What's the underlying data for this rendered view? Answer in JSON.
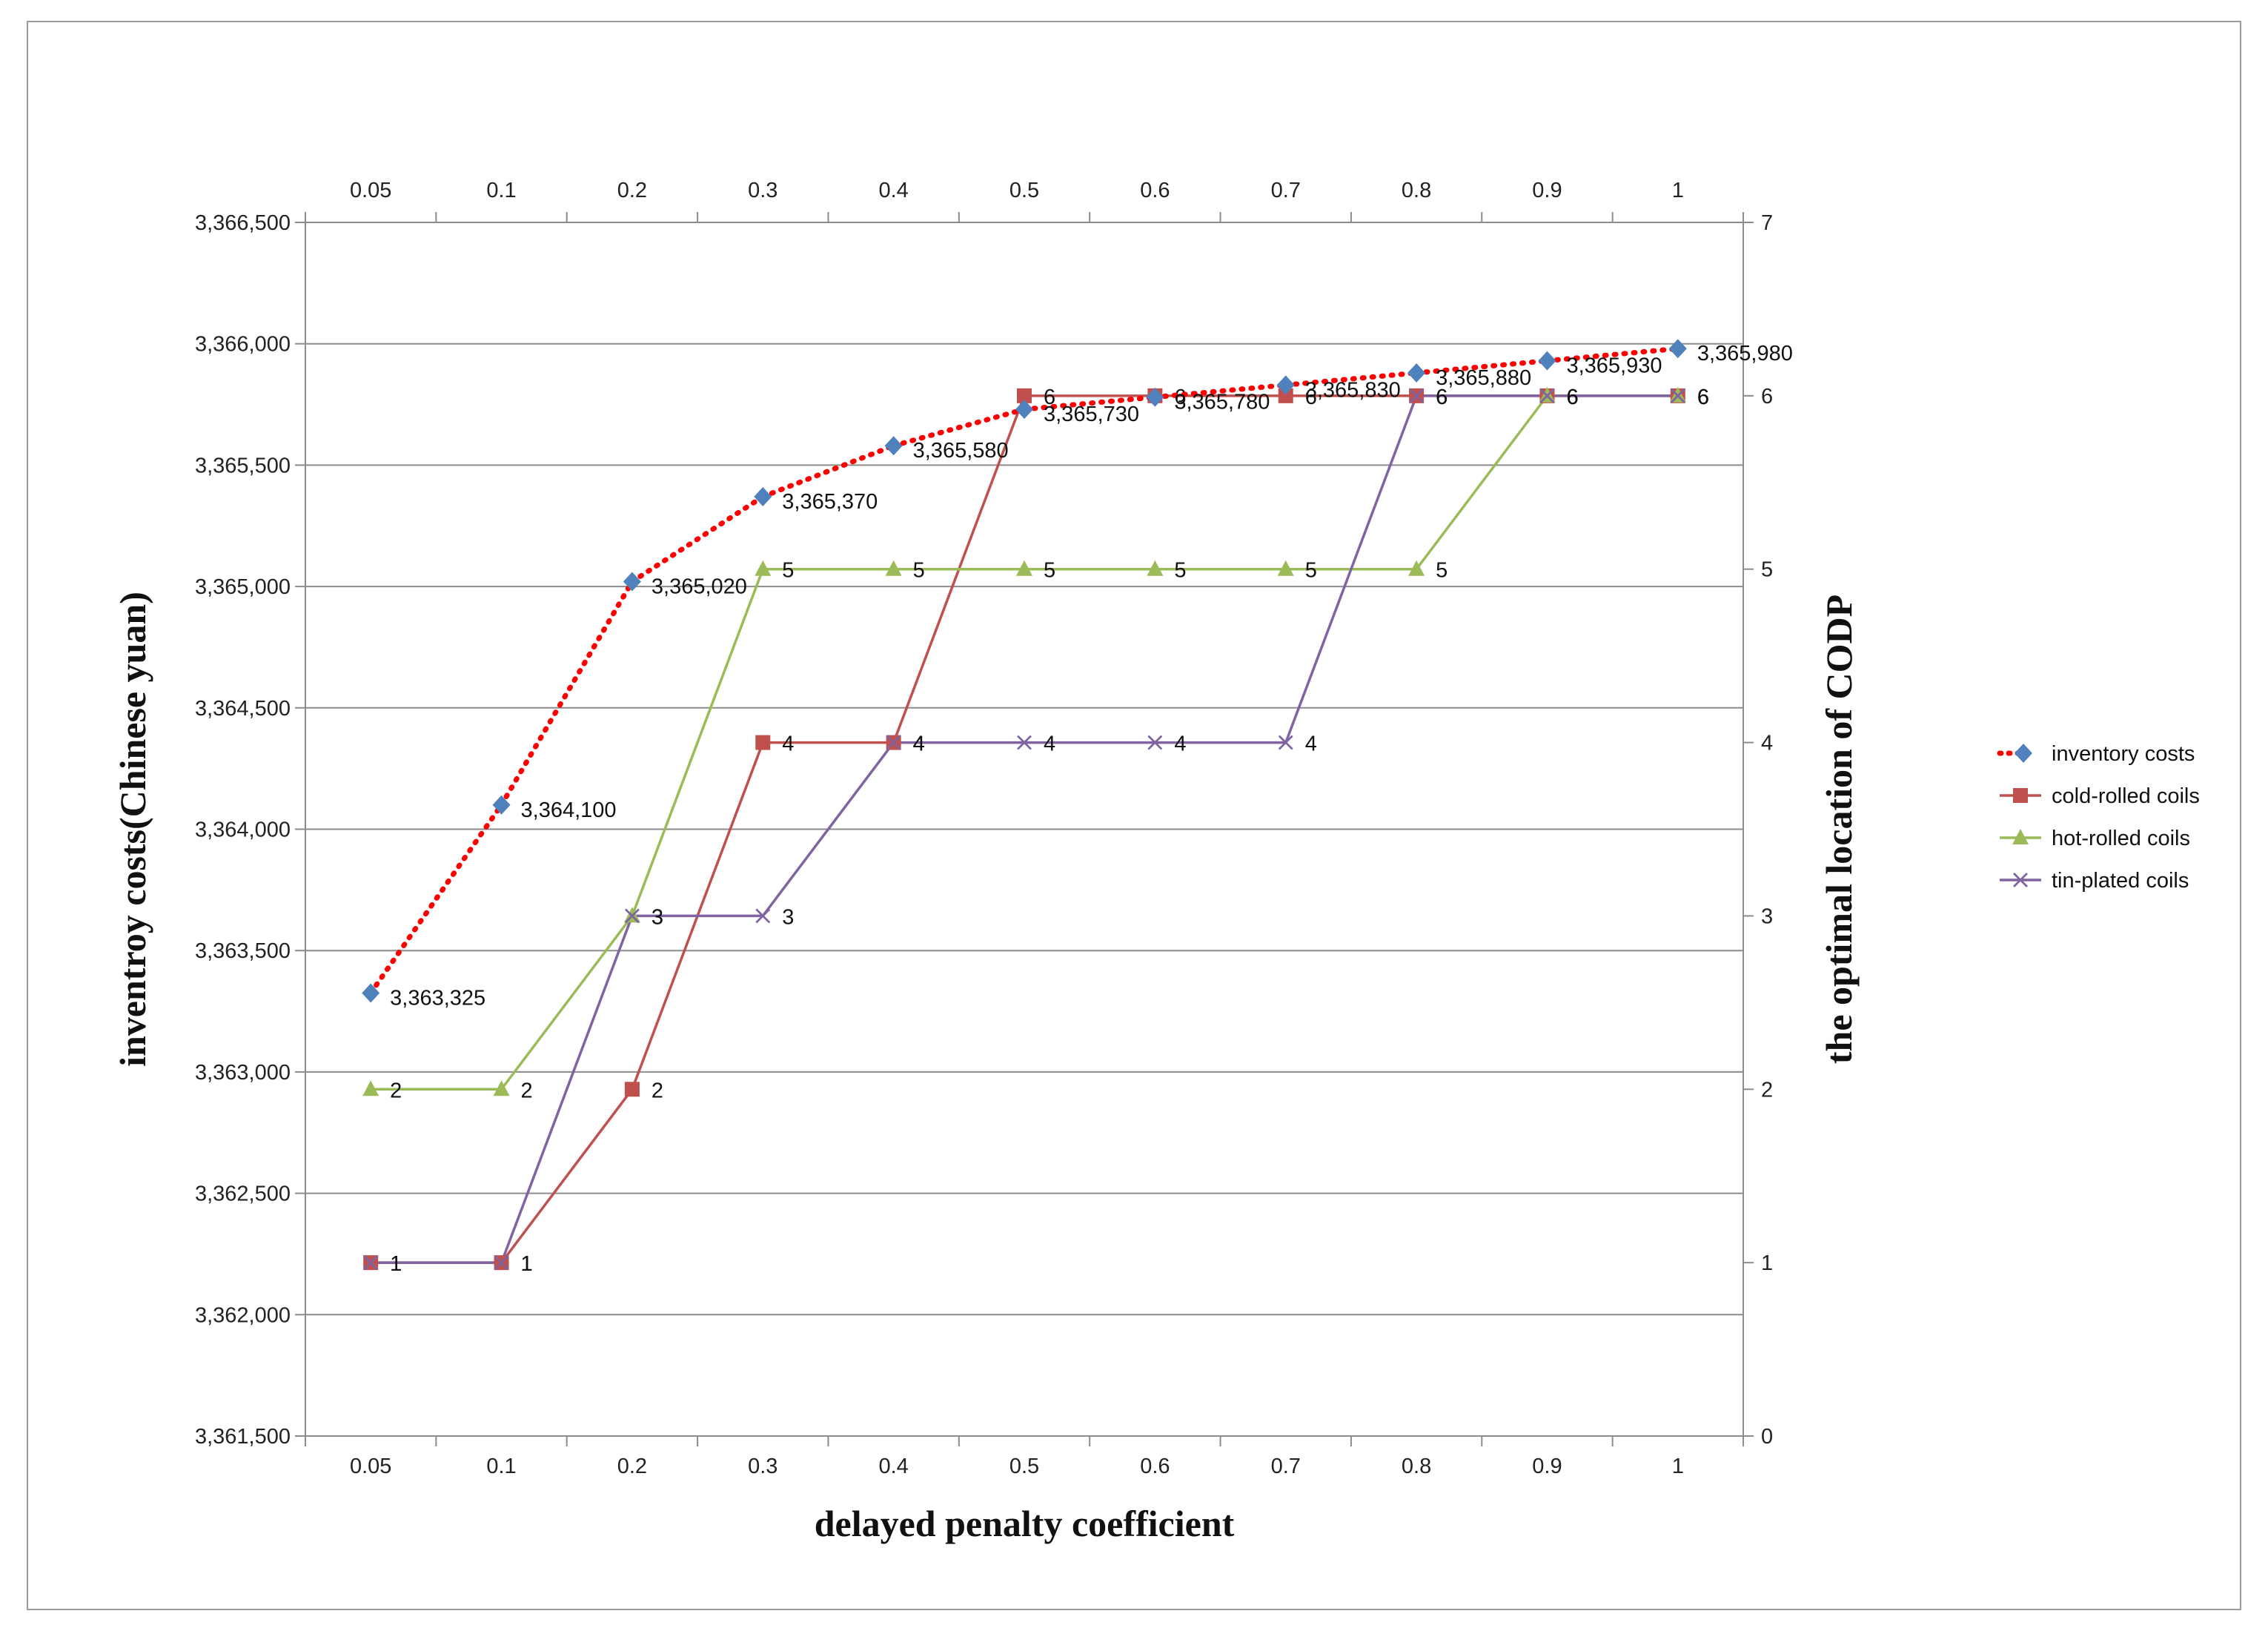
{
  "chart_data": {
    "type": "line",
    "categories": [
      "0.05",
      "0.1",
      "0.2",
      "0.3",
      "0.4",
      "0.5",
      "0.6",
      "0.7",
      "0.8",
      "0.9",
      "1"
    ],
    "xlabel": "delayed penalty coefficient",
    "ylabel_left": "inventroy costs(Chinese yuan)",
    "ylabel_right": "the optimal location of CODP",
    "ylim_left": [
      3361500,
      3366500
    ],
    "yticks_left": [
      "3,361,500",
      "3,362,000",
      "3,362,500",
      "3,363,000",
      "3,363,500",
      "3,364,000",
      "3,364,500",
      "3,365,000",
      "3,365,500",
      "3,366,000",
      "3,366,500"
    ],
    "ylim_right": [
      0,
      7
    ],
    "yticks_right": [
      "0",
      "1",
      "2",
      "3",
      "4",
      "5",
      "6",
      "7"
    ],
    "grid": true,
    "legend_position": "right",
    "series": [
      {
        "name": "inventory costs",
        "axis": "left",
        "color": "#ff0000",
        "marker_color": "#4f81bd",
        "marker": "diamond",
        "style": "dotted-arrow",
        "values": [
          3363325,
          3364100,
          3365020,
          3365370,
          3365580,
          3365730,
          3365780,
          3365830,
          3365880,
          3365930,
          3365980
        ],
        "labels": [
          "3,363,325",
          "3,364,100",
          "3,365,020",
          "3,365,370",
          "3,365,580",
          "3,365,730",
          "3,365,780",
          "3,365,830",
          "3,365,880",
          "3,365,930",
          "3,365,980"
        ]
      },
      {
        "name": "cold-rolled coils",
        "axis": "right",
        "color": "#c0504d",
        "marker": "square",
        "values": [
          1,
          1,
          2,
          4,
          4,
          6,
          6,
          6,
          6,
          6,
          6
        ],
        "labels": [
          "1",
          "1",
          "2",
          "4",
          "4",
          "6",
          "6",
          "6",
          "6",
          "6",
          "6"
        ]
      },
      {
        "name": "hot-rolled coils",
        "axis": "right",
        "color": "#9bbb59",
        "marker": "triangle",
        "values": [
          2,
          2,
          3,
          5,
          5,
          5,
          5,
          5,
          5,
          6,
          6
        ],
        "labels": [
          "2",
          "2",
          "3",
          "5",
          "5",
          "5",
          "5",
          "5",
          "5",
          "6",
          "6"
        ]
      },
      {
        "name": "tin-plated coils",
        "axis": "right",
        "color": "#8064a2",
        "marker": "x",
        "values": [
          1,
          1,
          3,
          3,
          4,
          4,
          4,
          4,
          6,
          6,
          6
        ],
        "labels": [
          "1",
          "1",
          "3",
          "3",
          "4",
          "4",
          "4",
          "4",
          "6",
          "6",
          "6"
        ]
      }
    ]
  }
}
